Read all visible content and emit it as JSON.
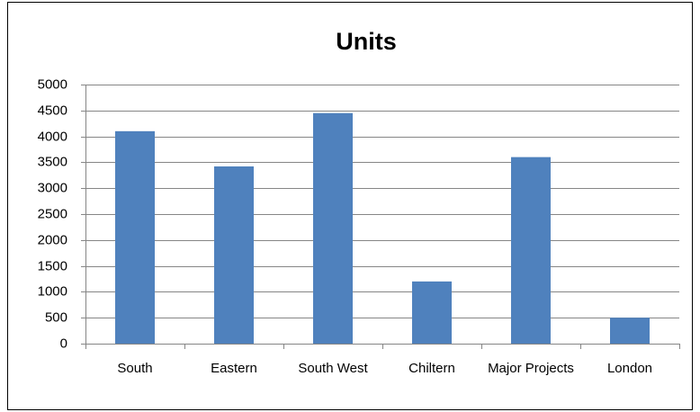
{
  "chart_data": {
    "type": "bar",
    "title": "Units",
    "categories": [
      "South",
      "Eastern",
      "South West",
      "Chiltern",
      "Major Projects",
      "London"
    ],
    "values": [
      4100,
      3420,
      4450,
      1200,
      3600,
      500
    ],
    "color": "#4f81bd",
    "ylim": [
      0,
      5000
    ],
    "yticks": [
      0,
      500,
      1000,
      1500,
      2000,
      2500,
      3000,
      3500,
      4000,
      4500,
      5000
    ],
    "grid": true
  }
}
